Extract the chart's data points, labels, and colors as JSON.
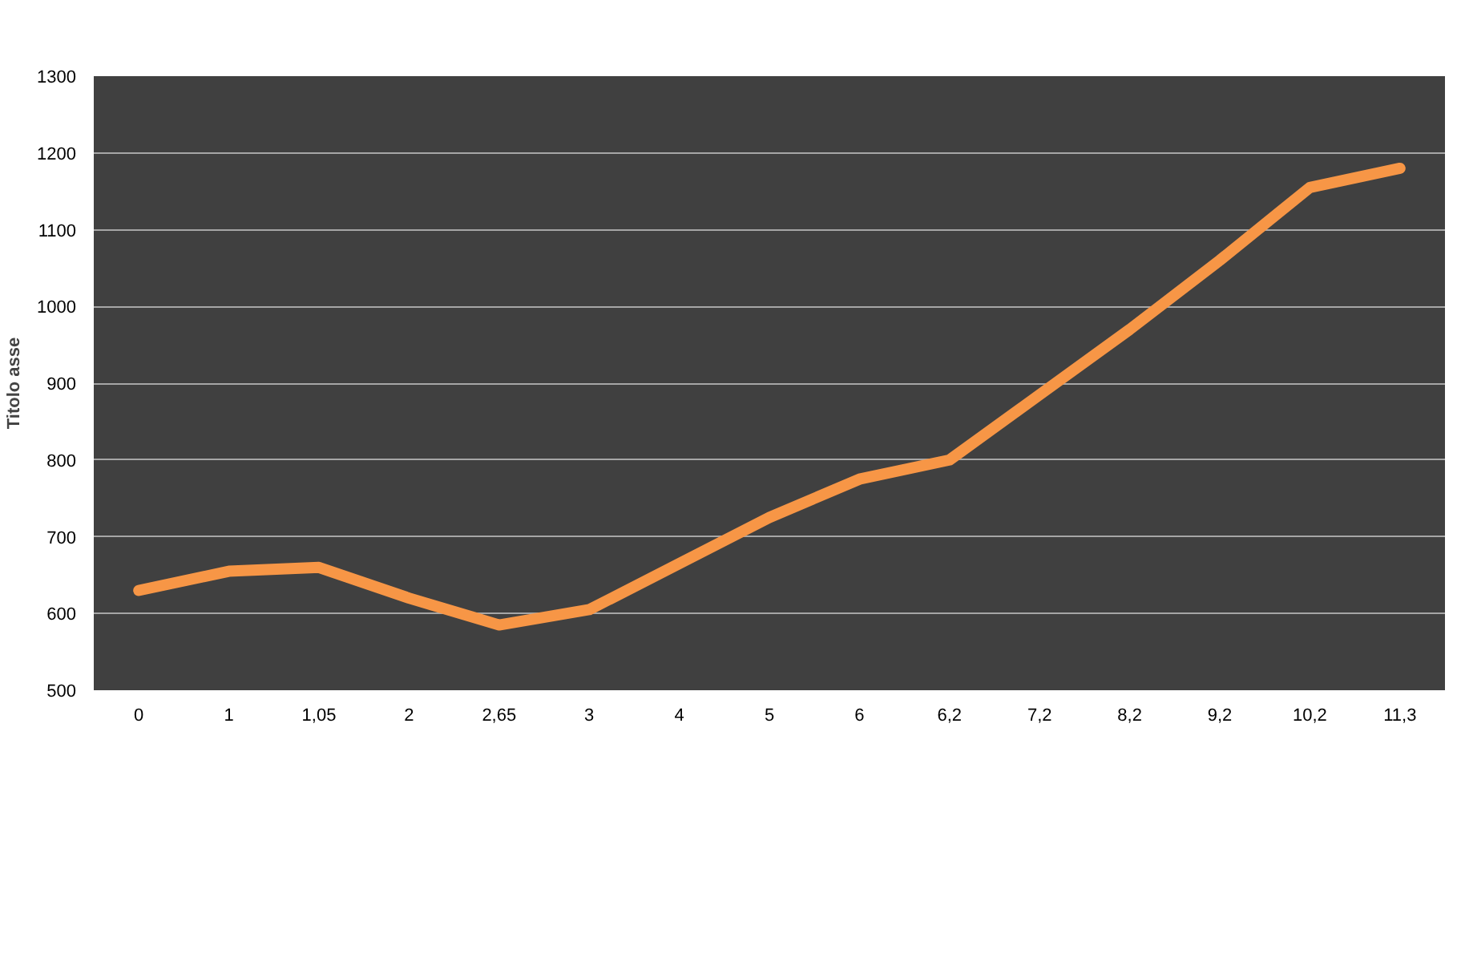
{
  "chart_data": {
    "type": "line",
    "ylabel": "Titolo asse",
    "categories": [
      "0",
      "1",
      "1,05",
      "2",
      "2,65",
      "3",
      "4",
      "5",
      "6",
      "6,2",
      "7,2",
      "8,2",
      "9,2",
      "10,2",
      "11,3"
    ],
    "series": [
      {
        "color": "#f79646",
        "values": [
          630,
          655,
          660,
          620,
          585,
          605,
          665,
          725,
          775,
          800,
          885,
          970,
          1060,
          1155,
          1180
        ]
      }
    ],
    "ylim": [
      500,
      1300
    ],
    "yticks": [
      500,
      600,
      700,
      800,
      900,
      1000,
      1100,
      1200,
      1300
    ],
    "grid": "y",
    "marker": "none",
    "line_style": "solid"
  }
}
